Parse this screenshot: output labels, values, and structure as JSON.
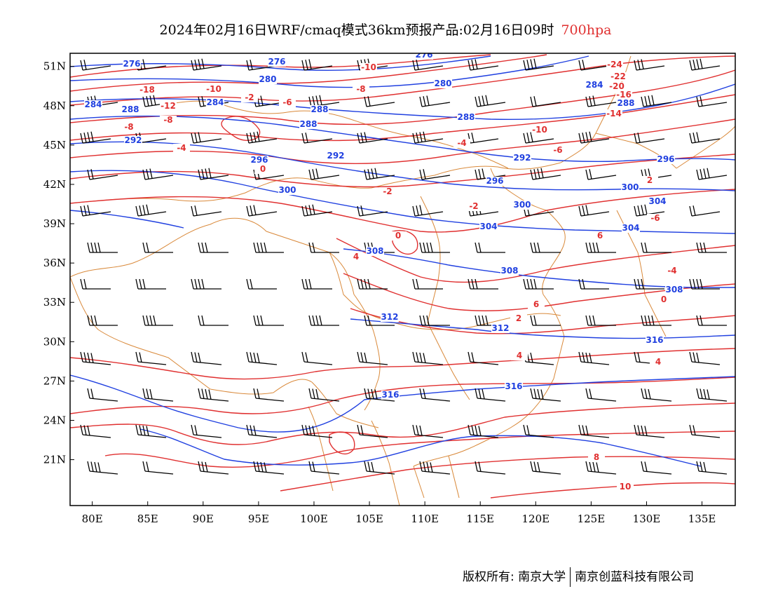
{
  "title": {
    "main": "2024年02月16日WRF/cmaq模式36km预报产品:02月16日09时",
    "level": "700hpa"
  },
  "map": {
    "lon_labels": [
      "80E",
      "85E",
      "90E",
      "95E",
      "100E",
      "105E",
      "110E",
      "115E",
      "120E",
      "125E",
      "130E",
      "135E"
    ],
    "lat_labels": [
      "51N",
      "48N",
      "45N",
      "42N",
      "39N",
      "36N",
      "33N",
      "30N",
      "27N",
      "24N",
      "21N"
    ],
    "lon_range": [
      78,
      138
    ],
    "lat_range": [
      17.5,
      52
    ],
    "height_color": "#2040e0",
    "temperature_color": "#e03030",
    "border_color": "#d9893a",
    "barb_color": "#000000",
    "height_labels": [
      "276",
      "276",
      "276",
      "280",
      "280",
      "284",
      "284",
      "284",
      "288",
      "288",
      "288",
      "288",
      "288",
      "292",
      "292",
      "292",
      "296",
      "296",
      "296",
      "300",
      "300",
      "300",
      "304",
      "304",
      "304",
      "308",
      "308",
      "308",
      "312",
      "312",
      "316",
      "316",
      "316"
    ],
    "temperature_labels": [
      "-24",
      "-22",
      "-20",
      "-18",
      "-16",
      "-14",
      "-12",
      "-10",
      "-10",
      "-10",
      "-8",
      "-8",
      "-8",
      "-6",
      "-6",
      "-6",
      "-4",
      "-4",
      "-4",
      "-2",
      "-2",
      "-2",
      "0",
      "0",
      "0",
      "2",
      "2",
      "4",
      "4",
      "4",
      "6",
      "6",
      "8",
      "10"
    ]
  },
  "copyright": {
    "left": "版权所有: 南京大学",
    "right": "南京创蓝科技有限公司"
  }
}
